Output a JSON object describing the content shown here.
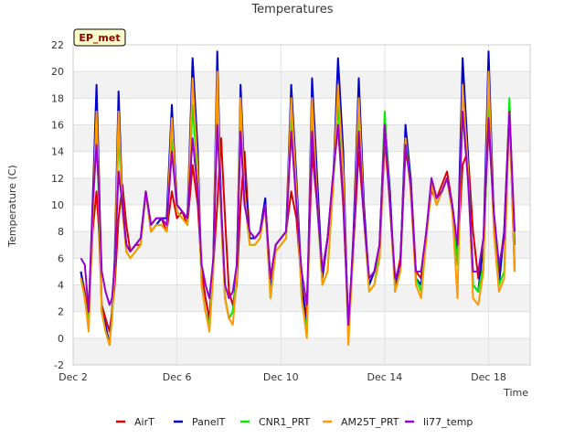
{
  "chart_data": {
    "type": "line",
    "title": "Temperatures",
    "xlabel": "Time",
    "ylabel": "Temperature (C)",
    "badge": "EP_met",
    "xlim": [
      0,
      17.6
    ],
    "ylim": [
      -2,
      22
    ],
    "yticks": [
      -2,
      0,
      2,
      4,
      6,
      8,
      10,
      12,
      14,
      16,
      18,
      20,
      22
    ],
    "xticks": [
      {
        "value": 0,
        "label": "Dec 2"
      },
      {
        "value": 4,
        "label": "Dec 6"
      },
      {
        "value": 8,
        "label": "Dec 10"
      },
      {
        "value": 12,
        "label": "Dec 14"
      },
      {
        "value": 16,
        "label": "Dec 18"
      }
    ],
    "legend_position": "bottom",
    "series": [
      {
        "name": "AirT",
        "color": "#dd0000",
        "x": [
          0.3,
          0.45,
          0.6,
          0.75,
          0.9,
          1.0,
          1.1,
          1.25,
          1.4,
          1.5,
          1.6,
          1.75,
          1.9,
          2.05,
          2.2,
          2.4,
          2.6,
          2.8,
          3.0,
          3.2,
          3.4,
          3.6,
          3.8,
          4.0,
          4.2,
          4.4,
          4.6,
          4.8,
          4.95,
          5.1,
          5.25,
          5.4,
          5.55,
          5.7,
          5.85,
          6.0,
          6.15,
          6.3,
          6.45,
          6.6,
          6.8,
          7.0,
          7.2,
          7.4,
          7.6,
          7.8,
          8.0,
          8.2,
          8.4,
          8.6,
          8.8,
          9.0,
          9.2,
          9.4,
          9.6,
          9.8,
          10.0,
          10.2,
          10.4,
          10.6,
          10.8,
          11.0,
          11.2,
          11.4,
          11.6,
          11.8,
          12.0,
          12.2,
          12.4,
          12.6,
          12.8,
          13.0,
          13.2,
          13.4,
          13.6,
          13.8,
          14.0,
          14.2,
          14.4,
          14.6,
          14.8,
          15.0,
          15.2,
          15.4,
          15.6,
          15.8,
          16.0,
          16.2,
          16.4,
          16.6,
          16.8,
          17.0
        ],
        "y": [
          5.0,
          3.5,
          1.5,
          8.0,
          11.0,
          8.0,
          2.5,
          1.5,
          0.5,
          2.0,
          4.0,
          9.0,
          11.5,
          8.5,
          6.5,
          7.0,
          7.0,
          11.0,
          8.5,
          9.0,
          9.0,
          8.0,
          11.0,
          9.0,
          9.5,
          8.5,
          13.0,
          10.0,
          5.0,
          3.0,
          1.5,
          5.5,
          10.0,
          15.0,
          9.0,
          3.5,
          2.5,
          4.0,
          10.0,
          14.0,
          7.5,
          7.5,
          8.0,
          10.0,
          4.5,
          7.0,
          7.5,
          8.0,
          11.0,
          9.0,
          4.0,
          1.5,
          14.0,
          10.0,
          5.0,
          7.5,
          12.0,
          16.0,
          10.0,
          1.0,
          7.0,
          14.0,
          9.0,
          4.0,
          5.0,
          6.0,
          15.0,
          10.0,
          4.0,
          6.0,
          14.0,
          12.0,
          5.0,
          4.5,
          8.0,
          11.0,
          10.5,
          11.5,
          12.5,
          10.0,
          6.0,
          13.0,
          14.0,
          8.0,
          4.5,
          7.0,
          16.0,
          9.5,
          5.0,
          8.0,
          17.5,
          7.0
        ]
      },
      {
        "name": "PanelT",
        "color": "#0000cc",
        "x": [
          0.3,
          0.45,
          0.6,
          0.75,
          0.9,
          1.0,
          1.1,
          1.25,
          1.4,
          1.5,
          1.6,
          1.75,
          1.9,
          2.05,
          2.2,
          2.4,
          2.6,
          2.8,
          3.0,
          3.2,
          3.4,
          3.6,
          3.8,
          4.0,
          4.2,
          4.4,
          4.6,
          4.8,
          4.95,
          5.1,
          5.25,
          5.4,
          5.55,
          5.7,
          5.85,
          6.0,
          6.15,
          6.3,
          6.45,
          6.6,
          6.8,
          7.0,
          7.2,
          7.4,
          7.6,
          7.8,
          8.0,
          8.2,
          8.4,
          8.6,
          8.8,
          9.0,
          9.2,
          9.4,
          9.6,
          9.8,
          10.0,
          10.2,
          10.4,
          10.6,
          10.8,
          11.0,
          11.2,
          11.4,
          11.6,
          11.8,
          12.0,
          12.2,
          12.4,
          12.6,
          12.8,
          13.0,
          13.2,
          13.4,
          13.6,
          13.8,
          14.0,
          14.2,
          14.4,
          14.6,
          14.8,
          15.0,
          15.2,
          15.4,
          15.6,
          15.8,
          16.0,
          16.2,
          16.4,
          16.6,
          16.8,
          17.0
        ],
        "y": [
          5.0,
          3.0,
          1.0,
          10.0,
          19.0,
          12.0,
          2.0,
          1.0,
          -0.5,
          2.0,
          6.0,
          18.5,
          10.0,
          7.0,
          6.5,
          7.0,
          7.5,
          11.0,
          8.0,
          8.5,
          9.0,
          9.0,
          17.5,
          10.0,
          9.5,
          9.0,
          21.0,
          14.0,
          4.0,
          2.0,
          1.0,
          6.0,
          21.5,
          10.0,
          3.0,
          1.5,
          2.0,
          5.0,
          19.0,
          12.0,
          7.5,
          7.5,
          8.0,
          10.5,
          3.5,
          7.0,
          7.5,
          8.0,
          19.0,
          12.0,
          4.0,
          0.5,
          19.5,
          12.0,
          4.5,
          7.5,
          11.0,
          21.0,
          14.0,
          0.0,
          8.0,
          19.5,
          10.0,
          4.0,
          5.0,
          7.0,
          16.5,
          11.0,
          3.5,
          5.5,
          16.0,
          12.0,
          4.5,
          4.0,
          8.0,
          11.5,
          10.0,
          11.0,
          12.0,
          9.5,
          6.0,
          21.0,
          14.0,
          4.0,
          3.5,
          7.0,
          21.5,
          9.0,
          4.0,
          8.0,
          17.0,
          5.0
        ]
      },
      {
        "name": "CNR1_PRT",
        "color": "#00ee00",
        "x": [
          0.3,
          0.45,
          0.6,
          0.75,
          0.9,
          1.0,
          1.1,
          1.25,
          1.4,
          1.5,
          1.6,
          1.75,
          1.9,
          2.05,
          2.2,
          2.4,
          2.6,
          2.8,
          3.0,
          3.2,
          3.4,
          3.6,
          3.8,
          4.0,
          4.2,
          4.4,
          4.6,
          4.8,
          4.95,
          5.1,
          5.25,
          5.4,
          5.55,
          5.7,
          5.85,
          6.0,
          6.15,
          6.3,
          6.45,
          6.6,
          6.8,
          7.0,
          7.2,
          7.4,
          7.6,
          7.8,
          8.0,
          8.2,
          8.4,
          8.6,
          8.8,
          9.0,
          9.2,
          9.4,
          9.6,
          9.8,
          10.0,
          10.2,
          10.4,
          10.6,
          10.8,
          11.0,
          11.2,
          11.4,
          11.6,
          11.8,
          12.0,
          12.2,
          12.4,
          12.6,
          12.8,
          13.0,
          13.2,
          13.4,
          13.6,
          13.8,
          14.0,
          14.2,
          14.4,
          14.6,
          14.8,
          15.0,
          15.2,
          15.4,
          15.6,
          15.8,
          16.0,
          16.2,
          16.4,
          16.6,
          16.8,
          17.0
        ],
        "y": [
          4.5,
          3.0,
          1.0,
          9.0,
          15.5,
          10.0,
          2.0,
          0.5,
          -0.5,
          1.5,
          5.0,
          15.5,
          9.5,
          6.5,
          6.0,
          6.5,
          7.0,
          11.0,
          8.0,
          8.5,
          8.5,
          8.0,
          15.0,
          9.5,
          9.0,
          8.5,
          17.5,
          12.0,
          4.0,
          2.0,
          1.0,
          5.0,
          18.0,
          9.0,
          3.0,
          1.5,
          2.0,
          4.5,
          17.5,
          10.5,
          7.0,
          7.0,
          7.5,
          10.0,
          3.0,
          6.5,
          7.0,
          7.5,
          17.0,
          11.0,
          3.0,
          0.5,
          17.0,
          10.0,
          4.0,
          5.0,
          11.0,
          17.5,
          12.0,
          0.0,
          7.0,
          17.5,
          9.0,
          3.5,
          4.0,
          6.5,
          17.0,
          10.0,
          3.5,
          5.0,
          15.0,
          11.5,
          4.5,
          3.5,
          7.5,
          11.5,
          10.0,
          11.0,
          12.0,
          9.5,
          5.5,
          17.0,
          13.0,
          4.0,
          3.5,
          5.5,
          17.5,
          8.5,
          4.0,
          5.0,
          18.0,
          5.5
        ]
      },
      {
        "name": "AM25T_PRT",
        "color": "#ff9900",
        "x": [
          0.3,
          0.45,
          0.6,
          0.75,
          0.9,
          1.0,
          1.1,
          1.25,
          1.4,
          1.5,
          1.6,
          1.75,
          1.9,
          2.05,
          2.2,
          2.4,
          2.6,
          2.8,
          3.0,
          3.2,
          3.4,
          3.6,
          3.8,
          4.0,
          4.2,
          4.4,
          4.6,
          4.8,
          4.95,
          5.1,
          5.25,
          5.4,
          5.55,
          5.7,
          5.85,
          6.0,
          6.15,
          6.3,
          6.45,
          6.6,
          6.8,
          7.0,
          7.2,
          7.4,
          7.6,
          7.8,
          8.0,
          8.2,
          8.4,
          8.6,
          8.8,
          9.0,
          9.2,
          9.4,
          9.6,
          9.8,
          10.0,
          10.2,
          10.4,
          10.6,
          10.8,
          11.0,
          11.2,
          11.4,
          11.6,
          11.8,
          12.0,
          12.2,
          12.4,
          12.6,
          12.8,
          13.0,
          13.2,
          13.4,
          13.6,
          13.8,
          14.0,
          14.2,
          14.4,
          14.6,
          14.8,
          15.0,
          15.2,
          15.4,
          15.6,
          15.8,
          16.0,
          16.2,
          16.4,
          16.6,
          16.8,
          17.0
        ],
        "y": [
          4.5,
          3.0,
          0.5,
          9.0,
          17.0,
          11.0,
          2.0,
          0.5,
          -0.5,
          1.5,
          5.0,
          17.0,
          9.5,
          6.5,
          6.0,
          6.5,
          7.0,
          11.0,
          8.0,
          8.5,
          8.5,
          8.0,
          16.5,
          9.5,
          9.0,
          8.5,
          19.5,
          12.5,
          4.0,
          2.0,
          0.5,
          5.0,
          20.0,
          9.0,
          3.0,
          1.5,
          1.0,
          4.5,
          18.0,
          11.0,
          7.0,
          7.0,
          7.5,
          10.0,
          3.0,
          6.5,
          7.0,
          7.5,
          18.0,
          11.0,
          3.0,
          0.0,
          18.0,
          10.5,
          4.0,
          5.0,
          11.0,
          19.0,
          12.5,
          -0.5,
          7.0,
          18.0,
          9.0,
          3.5,
          4.0,
          6.0,
          16.0,
          10.0,
          3.5,
          5.0,
          15.0,
          11.0,
          4.0,
          3.0,
          7.5,
          11.5,
          10.0,
          11.0,
          12.0,
          9.5,
          3.0,
          19.0,
          13.0,
          3.0,
          2.5,
          5.0,
          20.0,
          8.0,
          3.5,
          4.5,
          17.0,
          5.0
        ]
      },
      {
        "name": "li77_temp",
        "color": "#9900cc",
        "x": [
          0.3,
          0.45,
          0.6,
          0.75,
          0.9,
          1.0,
          1.1,
          1.25,
          1.4,
          1.5,
          1.6,
          1.75,
          1.9,
          2.05,
          2.2,
          2.4,
          2.6,
          2.8,
          3.0,
          3.2,
          3.4,
          3.6,
          3.8,
          4.0,
          4.2,
          4.4,
          4.6,
          4.8,
          4.95,
          5.1,
          5.25,
          5.4,
          5.55,
          5.7,
          5.85,
          6.0,
          6.15,
          6.3,
          6.45,
          6.6,
          6.8,
          7.0,
          7.2,
          7.4,
          7.6,
          7.8,
          8.0,
          8.2,
          8.4,
          8.6,
          8.8,
          9.0,
          9.2,
          9.4,
          9.6,
          9.8,
          10.0,
          10.2,
          10.4,
          10.6,
          10.8,
          11.0,
          11.2,
          11.4,
          11.6,
          11.8,
          12.0,
          12.2,
          12.4,
          12.6,
          12.8,
          13.0,
          13.2,
          13.4,
          13.6,
          13.8,
          14.0,
          14.2,
          14.4,
          14.6,
          14.8,
          15.0,
          15.2,
          15.4,
          15.6,
          15.8,
          16.0,
          16.2,
          16.4,
          16.6,
          16.8,
          17.0
        ],
        "y": [
          6.0,
          5.5,
          2.0,
          10.0,
          14.5,
          11.0,
          5.0,
          3.5,
          2.5,
          3.0,
          5.5,
          12.5,
          10.0,
          7.0,
          6.5,
          7.0,
          7.5,
          11.0,
          8.5,
          9.0,
          9.0,
          8.5,
          14.0,
          10.0,
          9.5,
          9.0,
          15.0,
          11.0,
          5.5,
          4.0,
          3.0,
          6.0,
          16.0,
          10.0,
          4.0,
          3.0,
          3.5,
          5.5,
          15.5,
          10.0,
          8.0,
          7.5,
          8.0,
          10.0,
          4.5,
          7.0,
          7.5,
          8.0,
          15.5,
          10.0,
          5.0,
          2.5,
          15.5,
          10.0,
          5.0,
          7.5,
          12.0,
          16.0,
          10.5,
          1.0,
          7.5,
          15.5,
          9.0,
          4.5,
          5.0,
          7.0,
          16.0,
          10.0,
          4.5,
          5.5,
          14.5,
          11.5,
          5.0,
          5.0,
          8.0,
          12.0,
          10.5,
          11.0,
          12.0,
          10.0,
          7.0,
          17.0,
          12.0,
          5.0,
          5.0,
          7.5,
          16.5,
          9.5,
          5.5,
          7.5,
          17.0,
          8.0
        ]
      }
    ]
  }
}
